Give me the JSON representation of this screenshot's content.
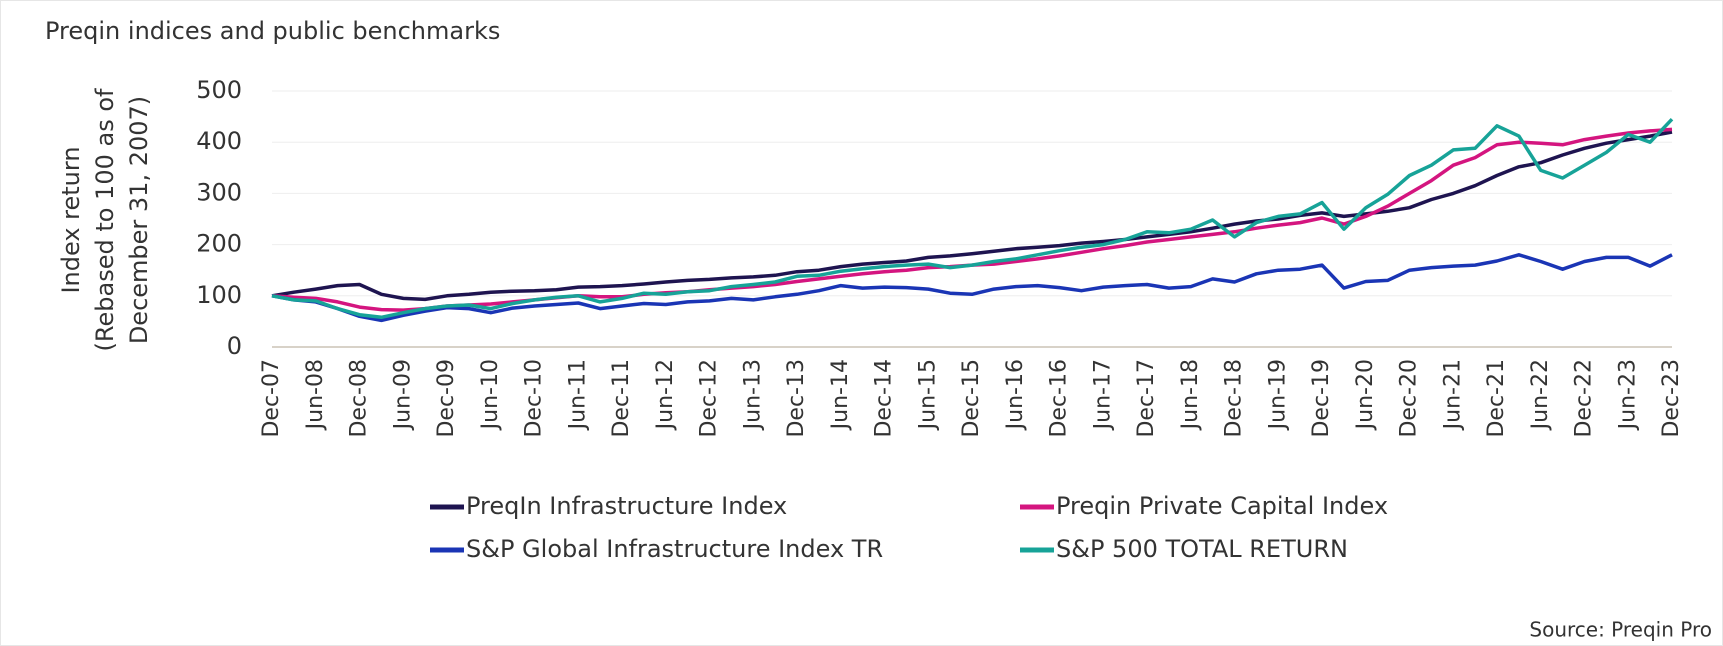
{
  "chart_data": {
    "type": "line",
    "title": "Preqin indices and public benchmarks",
    "y_label": [
      "Index return",
      "(Rebased to 100 as of",
      "December 31, 2007)"
    ],
    "source": "Source: Preqin Pro",
    "categories": [
      "Dec-07",
      null,
      "Jun-08",
      null,
      "Dec-08",
      null,
      "Jun-09",
      null,
      "Dec-09",
      null,
      "Jun-10",
      null,
      "Dec-10",
      null,
      "Jun-11",
      null,
      "Dec-11",
      null,
      "Jun-12",
      null,
      "Dec-12",
      null,
      "Jun-13",
      null,
      "Dec-13",
      null,
      "Jun-14",
      null,
      "Dec-14",
      null,
      "Jun-15",
      null,
      "Dec-15",
      null,
      "Jun-16",
      null,
      "Dec-16",
      null,
      "Jun-17",
      null,
      "Dec-17",
      null,
      "Jun-18",
      null,
      "Dec-18",
      null,
      "Jun-19",
      null,
      "Dec-19",
      null,
      "Jun-20",
      null,
      "Dec-20",
      null,
      "Jun-21",
      null,
      "Dec-21",
      null,
      "Jun-22",
      null,
      "Dec-22",
      null,
      "Jun-23",
      null,
      "Dec-23"
    ],
    "series": [
      {
        "name": "PreqIn Infrastructure Index",
        "color": "#1e1450",
        "values": [
          100,
          107,
          113,
          120,
          122,
          103,
          95,
          93,
          100,
          103,
          107,
          109,
          110,
          112,
          117,
          118,
          120,
          123,
          127,
          130,
          132,
          135,
          137,
          140,
          147,
          150,
          157,
          162,
          165,
          168,
          175,
          178,
          182,
          187,
          192,
          195,
          198,
          203,
          206,
          210,
          215,
          220,
          225,
          232,
          240,
          246,
          250,
          257,
          262,
          255,
          260,
          265,
          272,
          288,
          300,
          315,
          335,
          352,
          360,
          375,
          388,
          398,
          405,
          412,
          420
        ]
      },
      {
        "name": "Preqin Private Capital Index",
        "color": "#d4157f",
        "values": [
          100,
          97,
          95,
          88,
          78,
          73,
          72,
          75,
          80,
          82,
          84,
          88,
          92,
          96,
          100,
          98,
          98,
          103,
          106,
          108,
          112,
          115,
          118,
          122,
          128,
          133,
          138,
          143,
          147,
          150,
          155,
          157,
          160,
          162,
          167,
          172,
          178,
          185,
          192,
          198,
          205,
          210,
          215,
          220,
          225,
          232,
          238,
          243,
          252,
          240,
          255,
          275,
          300,
          325,
          355,
          370,
          395,
          400,
          398,
          395,
          405,
          412,
          418,
          422,
          425
        ]
      },
      {
        "name": "S&P Global Infrastructure Index TR",
        "color": "#1a35b5",
        "values": [
          100,
          92,
          88,
          75,
          60,
          52,
          62,
          70,
          77,
          75,
          67,
          76,
          80,
          83,
          86,
          75,
          80,
          85,
          83,
          88,
          90,
          95,
          92,
          98,
          103,
          110,
          120,
          115,
          117,
          116,
          113,
          105,
          103,
          113,
          118,
          120,
          116,
          110,
          117,
          120,
          122,
          115,
          118,
          133,
          127,
          143,
          150,
          152,
          160,
          115,
          128,
          130,
          150,
          155,
          158,
          160,
          168,
          180,
          167,
          152,
          167,
          175,
          175,
          158,
          180
        ]
      },
      {
        "name": "S&P 500 TOTAL RETURN",
        "color": "#17a398",
        "values": [
          100,
          92,
          90,
          75,
          63,
          58,
          67,
          75,
          80,
          82,
          75,
          85,
          92,
          97,
          100,
          88,
          95,
          105,
          103,
          108,
          110,
          118,
          122,
          127,
          138,
          140,
          148,
          153,
          157,
          160,
          162,
          155,
          160,
          167,
          172,
          180,
          188,
          195,
          200,
          210,
          225,
          223,
          230,
          248,
          215,
          243,
          255,
          260,
          282,
          230,
          272,
          298,
          335,
          355,
          385,
          388,
          432,
          412,
          345,
          330,
          355,
          380,
          415,
          400,
          445
        ]
      }
    ],
    "ylim": [
      0,
      500
    ],
    "yticks": [
      0,
      100,
      200,
      300,
      400,
      500
    ],
    "grid": true,
    "legend": "bottom"
  }
}
